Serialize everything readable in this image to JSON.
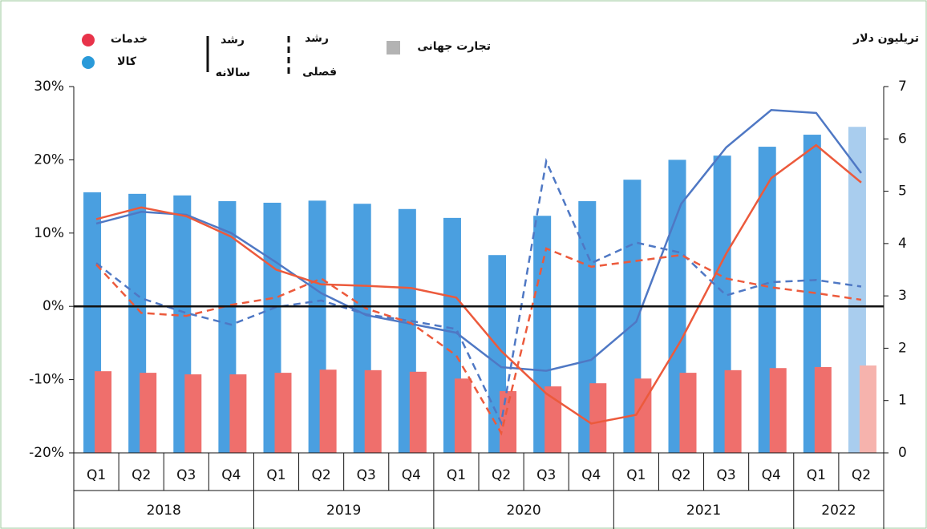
{
  "chart_data": {
    "type": "bar_line",
    "y_label": "تریلیون دلار",
    "legend": {
      "services": "خدمات",
      "goods": "کالا",
      "annual": [
        "رشد",
        "سالانه"
      ],
      "quarterly": [
        "رشد",
        "فصلی"
      ],
      "world": "تجارت جهانی",
      "world_color": "#b3b3b3"
    },
    "categories": [
      "Q1",
      "Q2",
      "Q3",
      "Q4",
      "Q1",
      "Q2",
      "Q3",
      "Q4",
      "Q1",
      "Q2",
      "Q3",
      "Q4",
      "Q1",
      "Q2",
      "Q3",
      "Q4",
      "Q1",
      "Q2"
    ],
    "years": [
      "2018",
      "2019",
      "2020",
      "2021",
      "2022"
    ],
    "ylim": [
      -20,
      30
    ],
    "yticks": [
      {
        "value": -20,
        "label": "-20%"
      },
      {
        "value": -10,
        "label": "-10%"
      },
      {
        "value": 0,
        "label": "0%"
      },
      {
        "value": 10,
        "label": "10%"
      },
      {
        "value": 20,
        "label": "20%"
      },
      {
        "value": 30,
        "label": "30%"
      }
    ],
    "y2lim": [
      0,
      7
    ],
    "y2ticks": [
      0,
      1,
      2,
      3,
      4,
      5,
      6,
      7
    ],
    "bars": [
      {
        "name": "کالا",
        "color": "#4a9fe0",
        "last_color": "#a9cdee",
        "axis": "y2",
        "values": [
          4.98,
          4.95,
          4.92,
          4.81,
          4.78,
          4.82,
          4.76,
          4.66,
          4.49,
          3.78,
          4.53,
          4.81,
          5.22,
          5.6,
          5.68,
          5.85,
          6.08,
          6.23
        ]
      },
      {
        "name": "خدمات",
        "color": "#ef6f6c",
        "last_color": "#f6b3ad",
        "axis": "y2",
        "values": [
          1.56,
          1.53,
          1.5,
          1.5,
          1.53,
          1.59,
          1.58,
          1.55,
          1.42,
          1.18,
          1.27,
          1.33,
          1.42,
          1.53,
          1.58,
          1.62,
          1.64,
          1.67
        ]
      }
    ],
    "lines": [
      {
        "color": "#4f78c4",
        "dashed": false,
        "values": [
          11.3,
          12.9,
          12.5,
          10.0,
          6.0,
          1.8,
          -1.2,
          -2.4,
          -3.6,
          -8.3,
          -8.8,
          -7.3,
          -2.1,
          14.0,
          21.7,
          26.8,
          26.4,
          18.2
        ]
      },
      {
        "color": "#ec5a3c",
        "dashed": false,
        "values": [
          11.9,
          13.5,
          12.3,
          9.5,
          5.0,
          3.0,
          2.8,
          2.5,
          1.2,
          -6.1,
          -11.9,
          -16.0,
          -14.8,
          -4.6,
          7.2,
          17.5,
          22.0,
          16.9
        ]
      },
      {
        "color": "#4f78c4",
        "dashed": true,
        "values": [
          5.9,
          1.1,
          -0.9,
          -2.5,
          -0.1,
          0.8,
          -1.1,
          -2.0,
          -3.1,
          -15.9,
          19.8,
          5.9,
          8.7,
          7.3,
          1.5,
          3.3,
          3.6,
          2.7
        ]
      },
      {
        "color": "#ec5a3c",
        "dashed": true,
        "values": [
          5.7,
          -0.9,
          -1.3,
          0.2,
          1.2,
          3.8,
          -0.3,
          -2.3,
          -6.7,
          -17.3,
          7.9,
          5.4,
          6.2,
          7.0,
          3.8,
          2.6,
          1.8,
          0.9
        ]
      }
    ]
  }
}
